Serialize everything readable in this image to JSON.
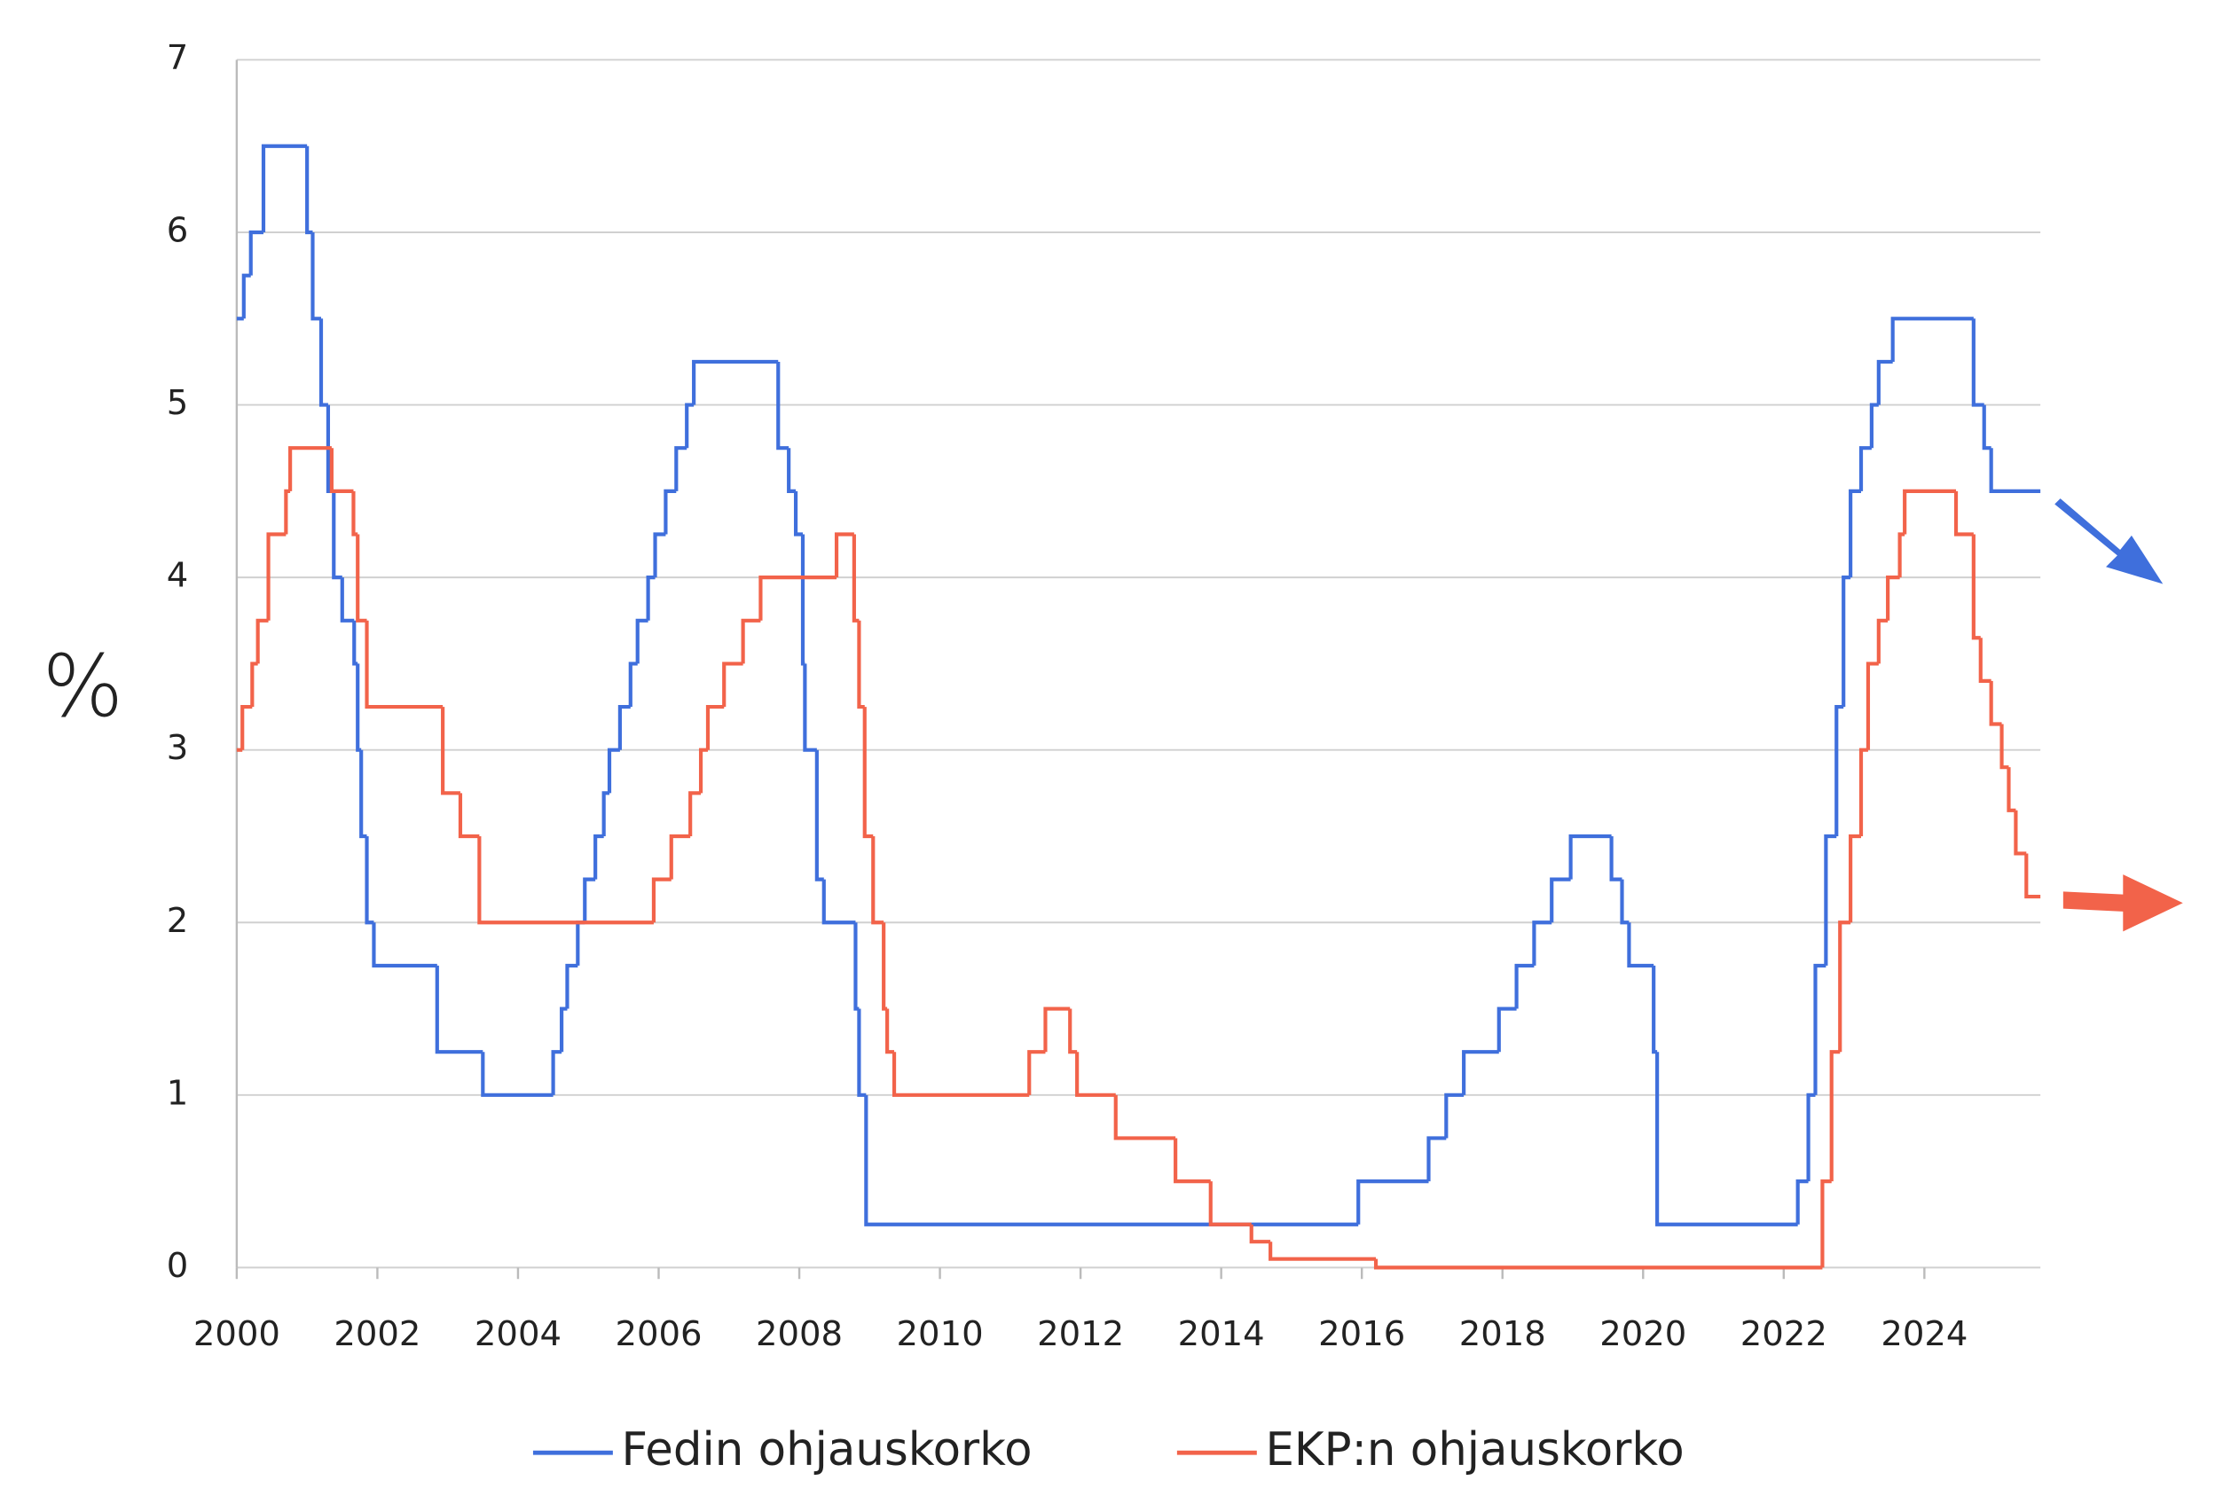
{
  "chart_data": {
    "type": "line",
    "step": true,
    "y_label": "%",
    "xlim": [
      2000,
      2025.65
    ],
    "ylim": [
      0,
      7
    ],
    "xticks": [
      2000,
      2002,
      2004,
      2006,
      2008,
      2010,
      2012,
      2014,
      2016,
      2018,
      2020,
      2022,
      2024
    ],
    "yticks": [
      0,
      1,
      2,
      3,
      4,
      5,
      6,
      7
    ],
    "grid": true,
    "series": [
      {
        "name": "Fedin ohjauskorko",
        "color": "#3f6fdc",
        "x": [
          2000.0,
          2000.1,
          2000.2,
          2000.38,
          2001.0,
          2001.08,
          2001.2,
          2001.3,
          2001.38,
          2001.5,
          2001.67,
          2001.72,
          2001.77,
          2001.85,
          2001.95,
          2002.85,
          2003.5,
          2004.5,
          2004.62,
          2004.7,
          2004.85,
          2004.95,
          2005.1,
          2005.22,
          2005.3,
          2005.45,
          2005.6,
          2005.7,
          2005.85,
          2005.95,
          2006.1,
          2006.25,
          2006.4,
          2006.5,
          2007.7,
          2007.85,
          2007.95,
          2008.05,
          2008.08,
          2008.25,
          2008.35,
          2008.8,
          2008.85,
          2008.95,
          2015.95,
          2016.95,
          2017.2,
          2017.45,
          2017.95,
          2018.2,
          2018.45,
          2018.7,
          2018.97,
          2019.55,
          2019.7,
          2019.8,
          2020.15,
          2020.2,
          2022.2,
          2022.35,
          2022.45,
          2022.6,
          2022.75,
          2022.85,
          2022.95,
          2023.1,
          2023.25,
          2023.35,
          2023.55,
          2024.7,
          2024.85,
          2024.95
        ],
        "values": [
          5.5,
          5.75,
          6.0,
          6.5,
          6.0,
          5.5,
          5.0,
          4.5,
          4.0,
          3.75,
          3.5,
          3.0,
          2.5,
          2.0,
          1.75,
          1.25,
          1.0,
          1.25,
          1.5,
          1.75,
          2.0,
          2.25,
          2.5,
          2.75,
          3.0,
          3.25,
          3.5,
          3.75,
          4.0,
          4.25,
          4.5,
          4.75,
          5.0,
          5.25,
          4.75,
          4.5,
          4.25,
          3.5,
          3.0,
          2.25,
          2.0,
          1.5,
          1.0,
          0.25,
          0.5,
          0.75,
          1.0,
          1.25,
          1.5,
          1.75,
          2.0,
          2.25,
          2.5,
          2.25,
          2.0,
          1.75,
          1.25,
          0.25,
          0.5,
          1.0,
          1.75,
          2.5,
          3.25,
          4.0,
          4.5,
          4.75,
          5.0,
          5.25,
          5.5,
          5.0,
          4.75,
          4.5
        ]
      },
      {
        "name": "EKP:n ohjauskorko",
        "color": "#f2634a",
        "x": [
          2000.0,
          2000.08,
          2000.22,
          2000.3,
          2000.45,
          2000.7,
          2000.76,
          2001.35,
          2001.66,
          2001.72,
          2001.85,
          2002.93,
          2003.18,
          2003.45,
          2005.93,
          2006.18,
          2006.45,
          2006.6,
          2006.7,
          2006.93,
          2007.2,
          2007.45,
          2008.53,
          2008.78,
          2008.85,
          2008.93,
          2009.05,
          2009.2,
          2009.25,
          2009.35,
          2011.27,
          2011.5,
          2011.85,
          2011.95,
          2012.5,
          2013.35,
          2013.85,
          2014.43,
          2014.7,
          2016.2,
          2022.55,
          2022.68,
          2022.8,
          2022.95,
          2023.1,
          2023.2,
          2023.35,
          2023.48,
          2023.65,
          2023.72,
          2024.45,
          2024.7,
          2024.8,
          2024.95,
          2025.1,
          2025.2,
          2025.3,
          2025.45
        ],
        "values": [
          3.0,
          3.25,
          3.5,
          3.75,
          4.25,
          4.5,
          4.75,
          4.5,
          4.25,
          3.75,
          3.25,
          2.75,
          2.5,
          2.0,
          2.25,
          2.5,
          2.75,
          3.0,
          3.25,
          3.5,
          3.75,
          4.0,
          4.25,
          3.75,
          3.25,
          2.5,
          2.0,
          1.5,
          1.25,
          1.0,
          1.25,
          1.5,
          1.25,
          1.0,
          0.75,
          0.5,
          0.25,
          0.15,
          0.05,
          0.0,
          0.5,
          1.25,
          2.0,
          2.5,
          3.0,
          3.5,
          3.75,
          4.0,
          4.25,
          4.5,
          4.25,
          3.65,
          3.4,
          3.15,
          2.9,
          2.65,
          2.4,
          2.15
        ]
      }
    ]
  }
}
